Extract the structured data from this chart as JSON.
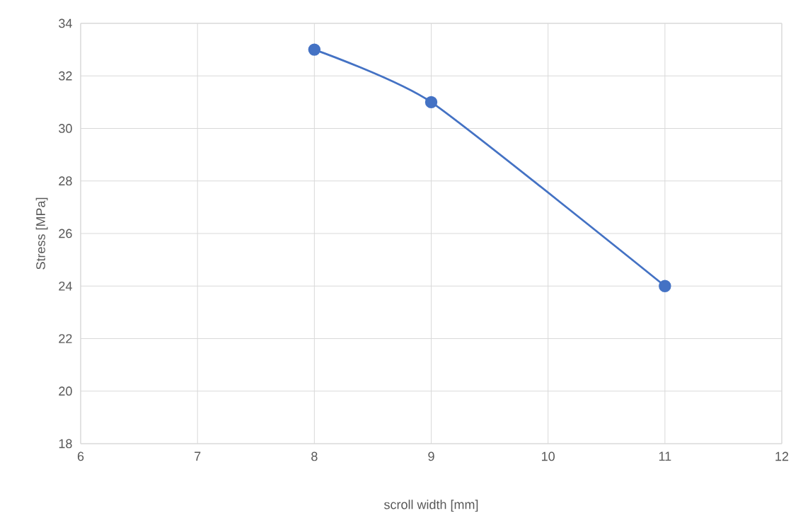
{
  "chart_data": {
    "type": "line",
    "xlabel": "scroll width [mm]",
    "ylabel": "Stress [MPa]",
    "x": [
      8,
      9,
      11
    ],
    "series": [
      {
        "color": "#4472c4",
        "values": [
          33,
          31,
          24
        ]
      }
    ],
    "xlim": [
      6,
      12
    ],
    "xticks": [
      6,
      7,
      8,
      9,
      10,
      11,
      12
    ],
    "ylim": [
      18,
      34
    ],
    "yticks": [
      18,
      20,
      22,
      24,
      26,
      28,
      30,
      32,
      34
    ],
    "grid": true,
    "marker": "circle",
    "line_style": "solid"
  }
}
